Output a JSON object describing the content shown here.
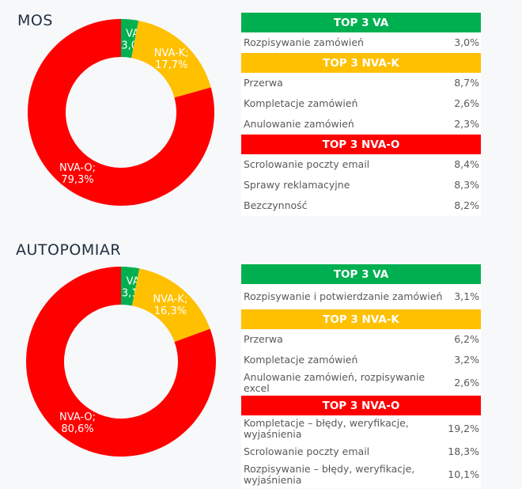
{
  "colors": {
    "VA": "#00b050",
    "NVA-K": "#ffc000",
    "NVA-O": "#ff0000"
  },
  "chart_data": [
    {
      "type": "pie",
      "title": "MOS",
      "categories": [
        "VA",
        "NVA-K",
        "NVA-O"
      ],
      "values": [
        3.0,
        17.7,
        79.3
      ],
      "labels": [
        "VA;",
        "NVA-K;",
        "NVA-O;"
      ],
      "value_labels": [
        "3,0%",
        "17,7%",
        "79,3%"
      ]
    },
    {
      "type": "pie",
      "title": "AUTOPOMIAR",
      "categories": [
        "VA",
        "NVA-K",
        "NVA-O"
      ],
      "values": [
        3.1,
        16.3,
        80.6
      ],
      "labels": [
        "VA;",
        "NVA-K;",
        "NVA-O;"
      ],
      "value_labels": [
        "3,1%",
        "16,3%",
        "80,6%"
      ]
    }
  ],
  "tables": [
    {
      "sections": [
        {
          "header": "TOP 3 VA",
          "key": "VA",
          "rows": [
            {
              "label": "Rozpisywanie zamówień",
              "value": "3,0%"
            }
          ]
        },
        {
          "header": "TOP 3 NVA-K",
          "key": "NVA-K",
          "rows": [
            {
              "label": "Przerwa",
              "value": "8,7%"
            },
            {
              "label": "Kompletacje zamówień",
              "value": "2,6%"
            },
            {
              "label": "Anulowanie zamówień",
              "value": "2,3%"
            }
          ]
        },
        {
          "header": "TOP 3 NVA-O",
          "key": "NVA-O",
          "rows": [
            {
              "label": "Scrolowanie poczty email",
              "value": "8,4%"
            },
            {
              "label": "Sprawy reklamacyjne",
              "value": "8,3%"
            },
            {
              "label": "Bezczynność",
              "value": "8,2%"
            }
          ]
        }
      ]
    },
    {
      "sections": [
        {
          "header": "TOP 3 VA",
          "key": "VA",
          "rows": [
            {
              "label": "Rozpisywanie i potwierdzanie zamówień",
              "value": "3,1%"
            }
          ]
        },
        {
          "header": "TOP 3 NVA-K",
          "key": "NVA-K",
          "rows": [
            {
              "label": "Przerwa",
              "value": "6,2%"
            },
            {
              "label": "Kompletacje zamówień",
              "value": "3,2%"
            },
            {
              "label": "Anulowanie zamówień, rozpisywanie excel",
              "value": "2,6%"
            }
          ]
        },
        {
          "header": "TOP 3 NVA-O",
          "key": "NVA-O",
          "rows": [
            {
              "label": "Kompletacje – błędy, weryfikacje, wyjaśnienia",
              "value": "19,2%"
            },
            {
              "label": "Scrolowanie poczty email",
              "value": "18,3%"
            },
            {
              "label": "Rozpisywanie – błędy, weryfikacje, wyjaśnienia",
              "value": "10,1%"
            }
          ]
        }
      ]
    }
  ]
}
